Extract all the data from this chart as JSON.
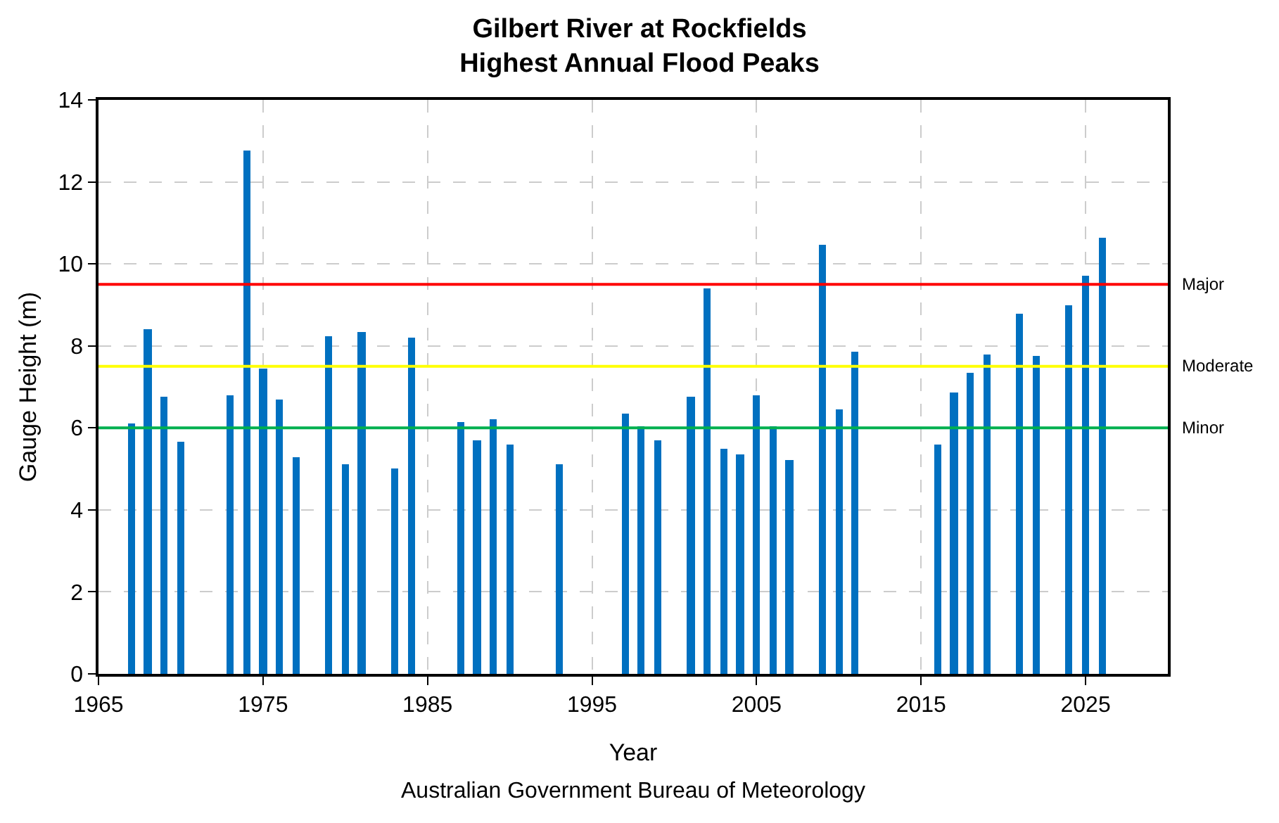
{
  "chart_data": {
    "type": "bar",
    "title": "Gilbert River at Rockfields\nHighest Annual Flood Peaks",
    "xlabel": "Year",
    "ylabel": "Gauge Height (m)",
    "x": [
      1967,
      1968,
      1969,
      1970,
      1973,
      1974,
      1975,
      1976,
      1977,
      1979,
      1980,
      1981,
      1983,
      1984,
      1987,
      1988,
      1989,
      1990,
      1993,
      1997,
      1998,
      1999,
      2001,
      2002,
      2003,
      2004,
      2005,
      2006,
      2007,
      2009,
      2010,
      2011,
      2016,
      2017,
      2018,
      2019,
      2021,
      2022,
      2024,
      2025,
      2026
    ],
    "values": [
      6.1,
      8.4,
      6.75,
      5.65,
      6.8,
      12.75,
      7.45,
      6.7,
      5.3,
      8.25,
      5.1,
      8.35,
      5.0,
      8.2,
      6.15,
      5.7,
      6.2,
      5.6,
      5.1,
      6.35,
      6.05,
      5.7,
      6.75,
      9.4,
      5.5,
      5.35,
      6.8,
      6.05,
      5.2,
      10.45,
      6.45,
      7.85,
      5.6,
      6.85,
      7.35,
      7.8,
      8.8,
      7.75,
      9.0,
      9.7,
      10.65
    ],
    "color": "#0070c0",
    "xlim": [
      1965,
      2030
    ],
    "xticks": [
      1965,
      1975,
      1985,
      1995,
      2005,
      2015,
      2025
    ],
    "ylim": [
      0,
      14
    ],
    "yticks": [
      0,
      2,
      4,
      6,
      8,
      10,
      12,
      14
    ],
    "grid": true,
    "ref_lines": [
      {
        "axis": "y",
        "value": 9.5,
        "label": "Major",
        "color": "#ff0000"
      },
      {
        "axis": "y",
        "value": 7.5,
        "label": "Moderate",
        "color": "#ffff00"
      },
      {
        "axis": "y",
        "value": 6,
        "label": "Minor",
        "color": "#00b050"
      }
    ],
    "annotations": [
      "Australian Government Bureau of Meteorology"
    ]
  }
}
